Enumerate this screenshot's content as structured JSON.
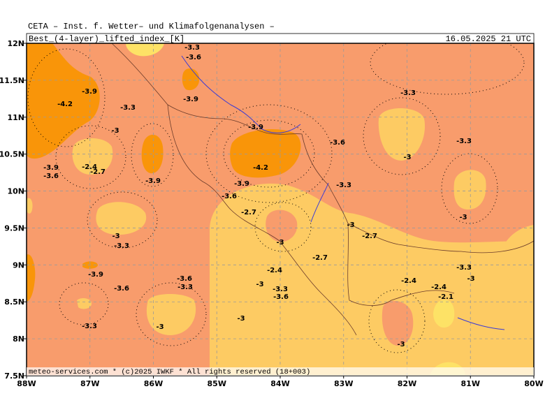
{
  "header": {
    "title": "CETA – Inst. f. Wetter– und Klimafolgenanalysen –",
    "parameter": "Best_(4-layer)_lifted_index_[K]",
    "valid_time": "16.05.2025  21 UTC"
  },
  "footer": "meteo-services.com * (c)2025 IWKF * All rights reserved (18+003)",
  "map": {
    "lon_ticks": [
      "88W",
      "87W",
      "86W",
      "85W",
      "84W",
      "83W",
      "82W",
      "81W",
      "80W"
    ],
    "lat_ticks": [
      "12N",
      "11.5N",
      "11N",
      "10.5N",
      "10N",
      "9.5N",
      "9N",
      "8.5N",
      "8N",
      "7.5N"
    ],
    "contour_labels": [
      "-3.3",
      "-3.6",
      "-3.9",
      "-4.2",
      "-3.3",
      "-3.9",
      "-3.3",
      "-3",
      "-3.9",
      "-3.6",
      "-3.3",
      "-3",
      "-3.9",
      "-2.4",
      "-2.7",
      "-3.6",
      "-4.2",
      "-3.9",
      "-3.9",
      "-3.3",
      "-3.6",
      "-2.7",
      "-3",
      "-3",
      "-2.7",
      "-3",
      "-3.3",
      "-3",
      "-2.7",
      "-2.4",
      "-3.3",
      "-3.9",
      "-3",
      "-3.6",
      "-3.3",
      "-2.4",
      "-3",
      "-3.6",
      "-2.4",
      "-3.3",
      "-3.6",
      "-2.1",
      "-3",
      "-3.3",
      "-3",
      "-3"
    ]
  }
}
